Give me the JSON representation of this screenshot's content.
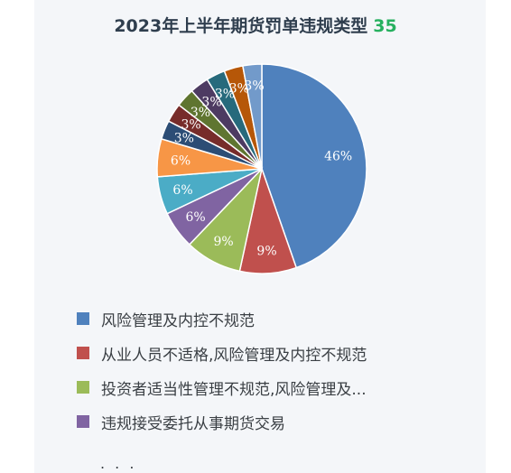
{
  "chart_data": {
    "type": "pie",
    "title": "2023年上半年期货罚单违规类型",
    "count": "35",
    "slices": [
      {
        "label": "风险管理及内控不规范",
        "value": 46,
        "display": "46%",
        "color": "#4f81bd"
      },
      {
        "label": "从业人员不适格,风险管理及内控不规范",
        "value": 9,
        "display": "9%",
        "color": "#c0504d"
      },
      {
        "label": "投资者适当性管理不规范,风险管理及...",
        "value": 9,
        "display": "9%",
        "color": "#9bbb59"
      },
      {
        "label": "违规接受委托从事期货交易",
        "value": 6,
        "display": "6%",
        "color": "#8064a2"
      },
      {
        "label": "",
        "value": 6,
        "display": "6%",
        "color": "#4bacc6"
      },
      {
        "label": "",
        "value": 6,
        "display": "6%",
        "color": "#f79646"
      },
      {
        "label": "",
        "value": 3,
        "display": "3%",
        "color": "#2c4d75"
      },
      {
        "label": "",
        "value": 3,
        "display": "3%",
        "color": "#772c2a"
      },
      {
        "label": "",
        "value": 3,
        "display": "3%",
        "color": "#5f7530"
      },
      {
        "label": "",
        "value": 3,
        "display": "3%",
        "color": "#4d3b62"
      },
      {
        "label": "",
        "value": 3,
        "display": "3%",
        "color": "#276a7c"
      },
      {
        "label": "",
        "value": 3,
        "display": "3%",
        "color": "#b65708"
      },
      {
        "label": "",
        "value": 3,
        "display": "3%",
        "color": "#729aca"
      }
    ],
    "legend_more": ". . .",
    "legend_position": "bottom"
  }
}
